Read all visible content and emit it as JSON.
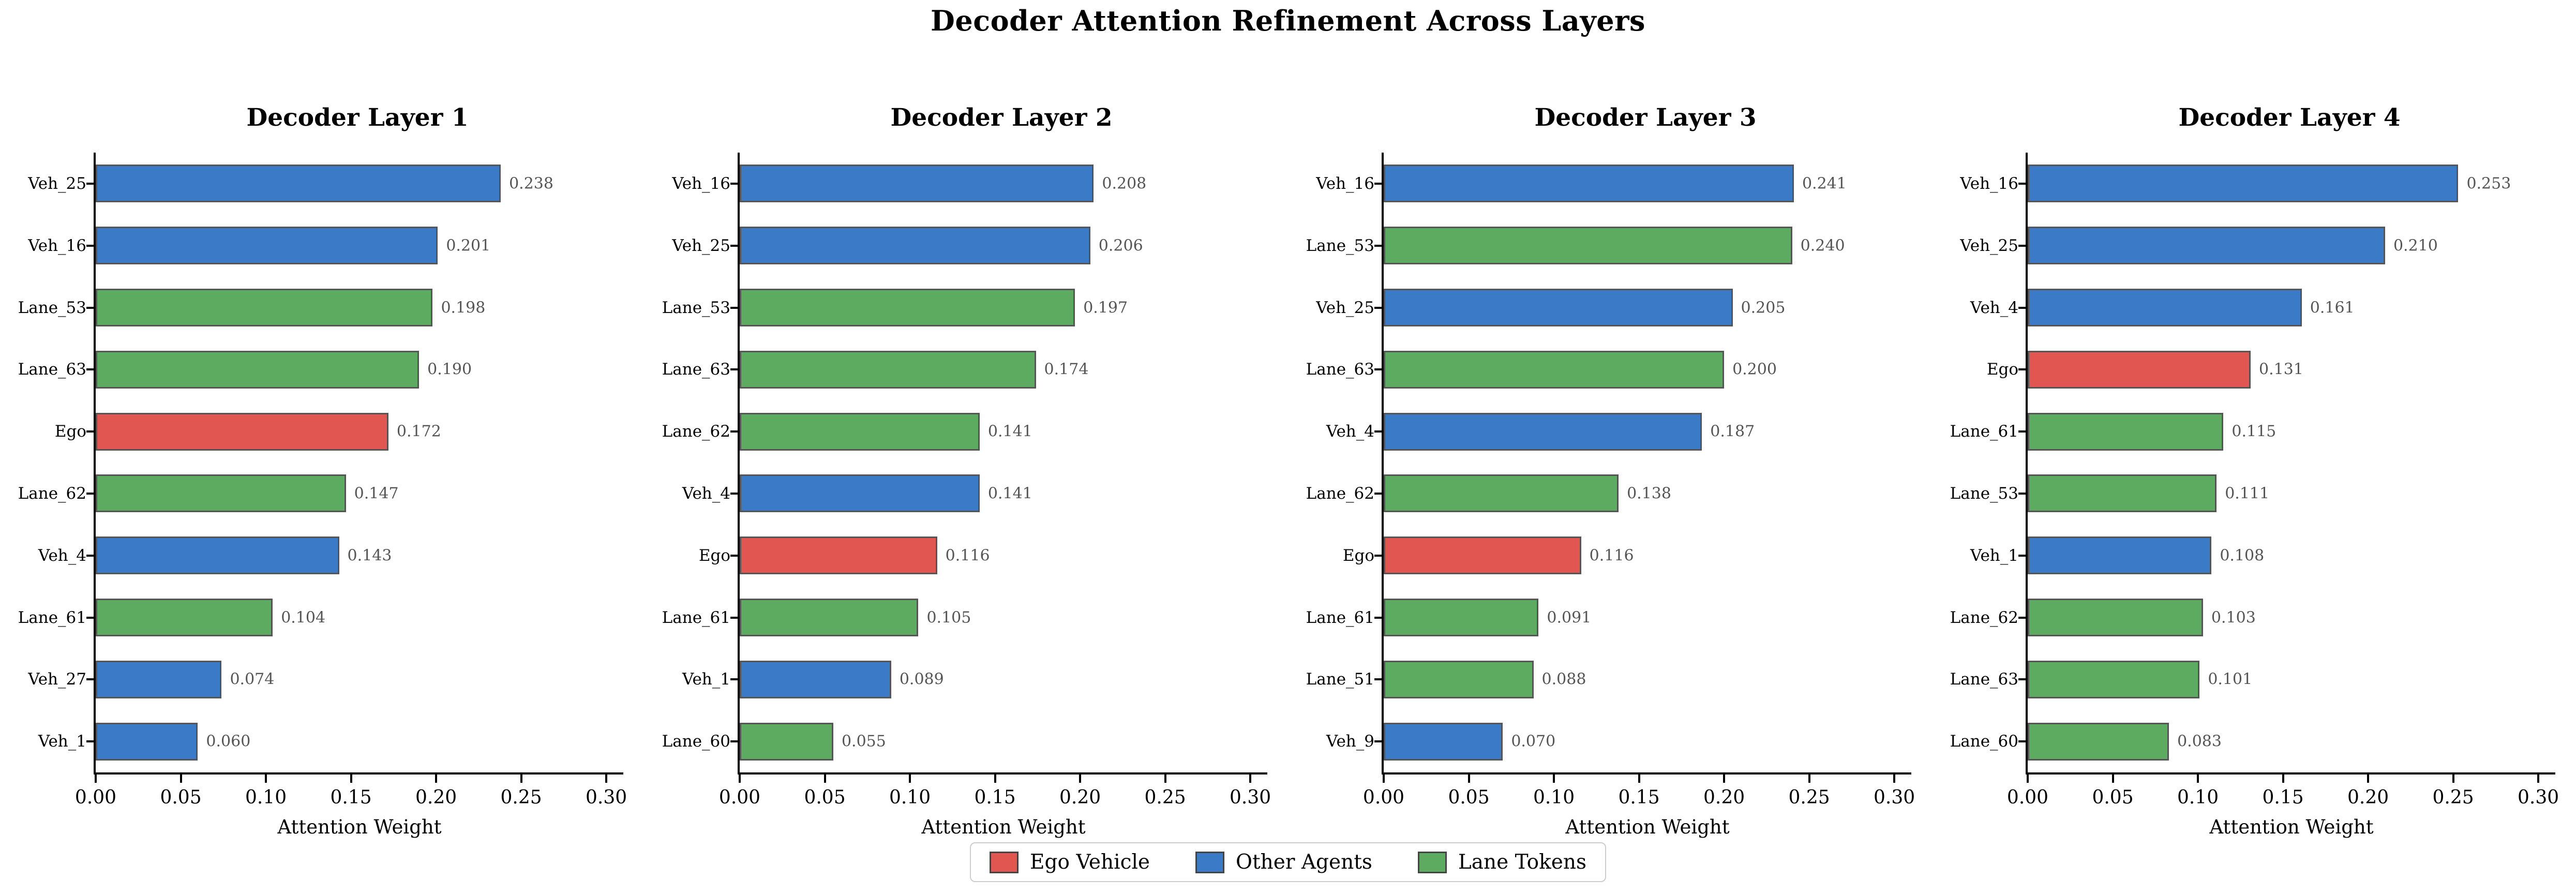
{
  "figure": {
    "title": "Decoder Attention Refinement Across Layers"
  },
  "axis": {
    "min": 0,
    "max": 0.31,
    "tick_values": [
      0,
      0.05,
      0.1,
      0.15,
      0.2,
      0.25,
      0.3
    ],
    "tick_labels": [
      "0.00",
      "0.05",
      "0.10",
      "0.15",
      "0.20",
      "0.25",
      "0.30"
    ],
    "xlabel": "Attention Weight"
  },
  "colors": {
    "ego": "#e25651",
    "agent": "#3a7ac6",
    "lane": "#5dab60",
    "bar_edge": "#555555",
    "value_label": "#555555",
    "legend_border": "#cccccc"
  },
  "legend": {
    "items": [
      {
        "label": "Ego Vehicle",
        "type": "ego"
      },
      {
        "label": "Other Agents",
        "type": "agent"
      },
      {
        "label": "Lane Tokens",
        "type": "lane"
      }
    ]
  },
  "chart_data": [
    {
      "type": "bar",
      "orientation": "horizontal",
      "title": "Decoder Layer 1",
      "xlabel": "Attention Weight",
      "xlim": [
        0,
        0.31
      ],
      "grid": false,
      "categories": [
        "Veh_25",
        "Veh_16",
        "Lane_53",
        "Lane_63",
        "Ego",
        "Lane_62",
        "Veh_4",
        "Lane_61",
        "Veh_27",
        "Veh_1"
      ],
      "values": [
        0.238,
        0.201,
        0.198,
        0.19,
        0.172,
        0.147,
        0.143,
        0.104,
        0.074,
        0.06
      ],
      "token_types": [
        "agent",
        "agent",
        "lane",
        "lane",
        "ego",
        "lane",
        "agent",
        "lane",
        "agent",
        "agent"
      ]
    },
    {
      "type": "bar",
      "orientation": "horizontal",
      "title": "Decoder Layer 2",
      "xlabel": "Attention Weight",
      "xlim": [
        0,
        0.31
      ],
      "grid": false,
      "categories": [
        "Veh_16",
        "Veh_25",
        "Lane_53",
        "Lane_63",
        "Lane_62",
        "Veh_4",
        "Ego",
        "Lane_61",
        "Veh_1",
        "Lane_60"
      ],
      "values": [
        0.208,
        0.206,
        0.197,
        0.174,
        0.141,
        0.141,
        0.116,
        0.105,
        0.089,
        0.055
      ],
      "token_types": [
        "agent",
        "agent",
        "lane",
        "lane",
        "lane",
        "agent",
        "ego",
        "lane",
        "agent",
        "lane"
      ]
    },
    {
      "type": "bar",
      "orientation": "horizontal",
      "title": "Decoder Layer 3",
      "xlabel": "Attention Weight",
      "xlim": [
        0,
        0.31
      ],
      "grid": false,
      "categories": [
        "Veh_16",
        "Lane_53",
        "Veh_25",
        "Lane_63",
        "Veh_4",
        "Lane_62",
        "Ego",
        "Lane_61",
        "Lane_51",
        "Veh_9"
      ],
      "values": [
        0.241,
        0.24,
        0.205,
        0.2,
        0.187,
        0.138,
        0.116,
        0.091,
        0.088,
        0.07
      ],
      "token_types": [
        "agent",
        "lane",
        "agent",
        "lane",
        "agent",
        "lane",
        "ego",
        "lane",
        "lane",
        "agent"
      ]
    },
    {
      "type": "bar",
      "orientation": "horizontal",
      "title": "Decoder Layer 4",
      "xlabel": "Attention Weight",
      "xlim": [
        0,
        0.31
      ],
      "grid": false,
      "categories": [
        "Veh_16",
        "Veh_25",
        "Veh_4",
        "Ego",
        "Lane_61",
        "Lane_53",
        "Veh_1",
        "Lane_62",
        "Lane_63",
        "Lane_60"
      ],
      "values": [
        0.253,
        0.21,
        0.161,
        0.131,
        0.115,
        0.111,
        0.108,
        0.103,
        0.101,
        0.083
      ],
      "token_types": [
        "agent",
        "agent",
        "agent",
        "ego",
        "lane",
        "lane",
        "agent",
        "lane",
        "lane",
        "lane"
      ]
    }
  ]
}
